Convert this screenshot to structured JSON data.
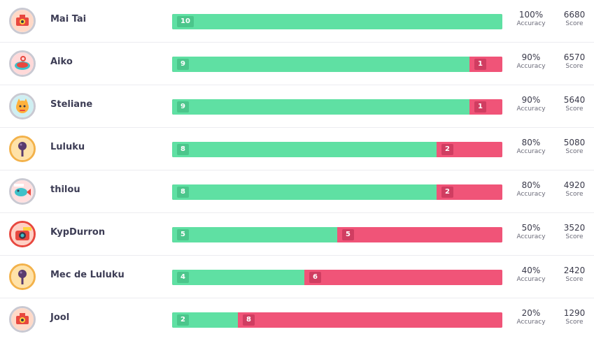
{
  "labels": {
    "accuracy": "Accuracy",
    "score": "Score"
  },
  "colors": {
    "correct": "#5fe0a3",
    "incorrect": "#f05478"
  },
  "players": [
    {
      "name": "Mai Tai",
      "avatar_icon": "camera-robot-icon",
      "correct": 10,
      "incorrect": 0,
      "accuracy": "100%",
      "score": "6680"
    },
    {
      "name": "Aiko",
      "avatar_icon": "turntable-icon",
      "correct": 9,
      "incorrect": 1,
      "accuracy": "90%",
      "score": "6570"
    },
    {
      "name": "Steliane",
      "avatar_icon": "cat-icon",
      "correct": 9,
      "incorrect": 1,
      "accuracy": "90%",
      "score": "5640"
    },
    {
      "name": "Luluku",
      "avatar_icon": "microphone-icon",
      "correct": 8,
      "incorrect": 2,
      "accuracy": "80%",
      "score": "5080"
    },
    {
      "name": "thilou",
      "avatar_icon": "fish-icon",
      "correct": 8,
      "incorrect": 2,
      "accuracy": "80%",
      "score": "4920"
    },
    {
      "name": "KypDurron",
      "avatar_icon": "camera-icon",
      "correct": 5,
      "incorrect": 5,
      "accuracy": "50%",
      "score": "3520"
    },
    {
      "name": "Mec de Luluku",
      "avatar_icon": "microphone-icon",
      "correct": 4,
      "incorrect": 6,
      "accuracy": "40%",
      "score": "2420"
    },
    {
      "name": "Jool",
      "avatar_icon": "camera-robot-icon",
      "correct": 2,
      "incorrect": 8,
      "accuracy": "20%",
      "score": "1290"
    }
  ]
}
